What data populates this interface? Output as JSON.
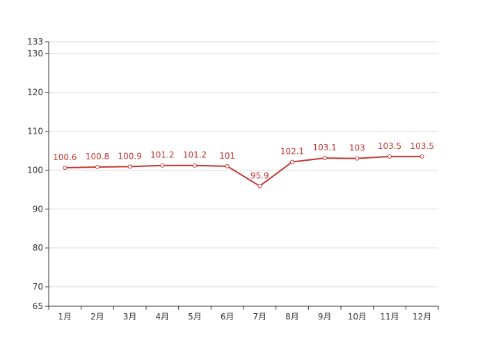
{
  "chart_data": {
    "type": "line",
    "categories": [
      "1月",
      "2月",
      "3月",
      "4月",
      "5月",
      "6月",
      "7月",
      "8月",
      "9月",
      "10月",
      "11月",
      "12月"
    ],
    "series": [
      {
        "values": [
          100.6,
          100.8,
          100.9,
          101.2,
          101.2,
          101,
          95.9,
          102.1,
          103.1,
          103,
          103.5,
          103.5
        ],
        "labels": [
          "100.6",
          "100.8",
          "100.9",
          "101.2",
          "101.2",
          "101",
          "95.9",
          "102.1",
          "103.1",
          "103",
          "103.5",
          "103.5"
        ],
        "color": "#c23531"
      }
    ],
    "y_ticks": [
      65,
      70,
      80,
      90,
      100,
      110,
      120,
      130,
      133
    ],
    "ylim": [
      65,
      133
    ],
    "grid": true,
    "title": "",
    "xlabel": "",
    "ylabel": ""
  }
}
